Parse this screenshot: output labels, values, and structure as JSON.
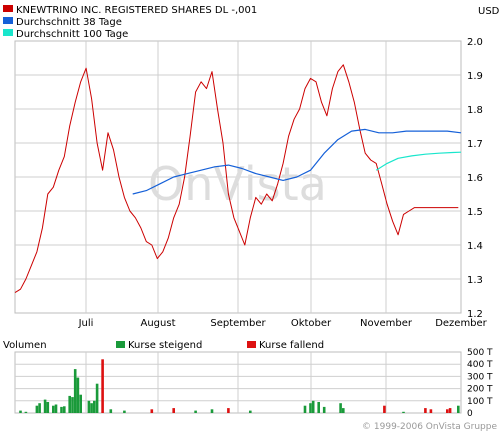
{
  "chart_data": [
    {
      "type": "line",
      "currency": "USD",
      "legend": [
        {
          "name": "KNEWTRINO INC. REGISTERED SHARES DL -,001",
          "color": "#cc0000"
        },
        {
          "name": "Durchschnitt 38 Tage",
          "color": "#1560d8"
        },
        {
          "name": "Durchschnitt 100 Tage",
          "color": "#19e6cc"
        }
      ],
      "x_labels": [
        "Juli",
        "August",
        "September",
        "Oktober",
        "November",
        "Dezember"
      ],
      "ylim": [
        1.2,
        2.0
      ],
      "y_ticks": [
        "1.2",
        "1.3",
        "1.4",
        "1.5",
        "1.6",
        "1.7",
        "1.8",
        "1.9",
        "2.0"
      ],
      "grid": true,
      "watermark": "OnVista",
      "x_range": [
        0,
        163
      ],
      "series": [
        {
          "name": "KNEWTRINO INC. REGISTERED SHARES DL -,001",
          "color": "#cc0000",
          "x": [
            0,
            2,
            4,
            6,
            8,
            10,
            12,
            14,
            16,
            18,
            20,
            22,
            24,
            26,
            28,
            30,
            32,
            34,
            36,
            38,
            40,
            42,
            44,
            46,
            48,
            50,
            52,
            54,
            56,
            58,
            60,
            62,
            64,
            66,
            68,
            70,
            72,
            74,
            76,
            78,
            80,
            82,
            84,
            86,
            88,
            90,
            92,
            94,
            96,
            98,
            100,
            102,
            104,
            106,
            108,
            110,
            112,
            114,
            116,
            118,
            120,
            122,
            124,
            126,
            128,
            130,
            132,
            134,
            136,
            138,
            140,
            142,
            144,
            146,
            148,
            150,
            152,
            154,
            156,
            158,
            160,
            162
          ],
          "y": [
            1.26,
            1.27,
            1.3,
            1.34,
            1.38,
            1.45,
            1.55,
            1.57,
            1.62,
            1.66,
            1.75,
            1.82,
            1.88,
            1.92,
            1.83,
            1.7,
            1.62,
            1.73,
            1.68,
            1.6,
            1.54,
            1.5,
            1.48,
            1.45,
            1.41,
            1.4,
            1.36,
            1.38,
            1.42,
            1.48,
            1.52,
            1.6,
            1.72,
            1.85,
            1.88,
            1.86,
            1.91,
            1.8,
            1.7,
            1.55,
            1.48,
            1.44,
            1.4,
            1.48,
            1.54,
            1.52,
            1.55,
            1.53,
            1.58,
            1.64,
            1.72,
            1.77,
            1.8,
            1.86,
            1.89,
            1.88,
            1.82,
            1.78,
            1.86,
            1.91,
            1.93,
            1.88,
            1.82,
            1.74,
            1.67,
            1.65,
            1.64,
            1.58,
            1.52,
            1.47,
            1.43,
            1.49,
            1.5,
            1.51,
            1.51,
            1.51,
            1.51,
            1.51,
            1.51,
            1.51,
            1.51,
            1.51
          ],
          "x_limit": 163
        },
        {
          "name": "Durchschnitt 38 Tage",
          "color": "#1560d8",
          "x": [
            43,
            48,
            53,
            58,
            63,
            68,
            73,
            78,
            83,
            88,
            93,
            98,
            103,
            108,
            113,
            118,
            123,
            128,
            133,
            138,
            143,
            148,
            153,
            158,
            163
          ],
          "y": [
            1.55,
            1.56,
            1.58,
            1.6,
            1.61,
            1.62,
            1.63,
            1.635,
            1.625,
            1.61,
            1.6,
            1.59,
            1.6,
            1.62,
            1.67,
            1.71,
            1.735,
            1.74,
            1.73,
            1.73,
            1.735,
            1.735,
            1.735,
            1.735,
            1.73
          ]
        },
        {
          "name": "Durchschnitt 100 Tage",
          "color": "#19e6cc",
          "x": [
            132,
            136,
            140,
            145,
            150,
            155,
            160,
            163
          ],
          "y": [
            1.62,
            1.64,
            1.655,
            1.662,
            1.667,
            1.67,
            1.672,
            1.673
          ]
        }
      ]
    },
    {
      "type": "bar",
      "title": "Volumen",
      "legend": [
        {
          "name": "Kurse steigend",
          "color": "#1a9a3a"
        },
        {
          "name": "Kurse fallend",
          "color": "#dd1111"
        }
      ],
      "ylim": [
        0,
        500
      ],
      "y_ticks": [
        "0",
        "100 T",
        "200 T",
        "300 T",
        "400 T",
        "500 T"
      ],
      "grid": true,
      "bars": [
        {
          "x": 2,
          "v": 20,
          "dir": "up"
        },
        {
          "x": 4,
          "v": 10,
          "dir": "up"
        },
        {
          "x": 8,
          "v": 60,
          "dir": "up"
        },
        {
          "x": 9,
          "v": 80,
          "dir": "up"
        },
        {
          "x": 11,
          "v": 110,
          "dir": "up"
        },
        {
          "x": 12,
          "v": 90,
          "dir": "up"
        },
        {
          "x": 14,
          "v": 60,
          "dir": "up"
        },
        {
          "x": 15,
          "v": 70,
          "dir": "up"
        },
        {
          "x": 17,
          "v": 50,
          "dir": "up"
        },
        {
          "x": 18,
          "v": 55,
          "dir": "up"
        },
        {
          "x": 20,
          "v": 140,
          "dir": "up"
        },
        {
          "x": 21,
          "v": 130,
          "dir": "up"
        },
        {
          "x": 22,
          "v": 360,
          "dir": "up"
        },
        {
          "x": 23,
          "v": 290,
          "dir": "up"
        },
        {
          "x": 24,
          "v": 150,
          "dir": "up"
        },
        {
          "x": 27,
          "v": 100,
          "dir": "up"
        },
        {
          "x": 28,
          "v": 80,
          "dir": "up"
        },
        {
          "x": 29,
          "v": 100,
          "dir": "up"
        },
        {
          "x": 30,
          "v": 240,
          "dir": "up"
        },
        {
          "x": 32,
          "v": 440,
          "dir": "down"
        },
        {
          "x": 35,
          "v": 30,
          "dir": "up"
        },
        {
          "x": 40,
          "v": 20,
          "dir": "up"
        },
        {
          "x": 50,
          "v": 30,
          "dir": "down"
        },
        {
          "x": 58,
          "v": 40,
          "dir": "down"
        },
        {
          "x": 66,
          "v": 20,
          "dir": "up"
        },
        {
          "x": 72,
          "v": 30,
          "dir": "up"
        },
        {
          "x": 78,
          "v": 40,
          "dir": "down"
        },
        {
          "x": 86,
          "v": 20,
          "dir": "up"
        },
        {
          "x": 106,
          "v": 60,
          "dir": "up"
        },
        {
          "x": 108,
          "v": 80,
          "dir": "up"
        },
        {
          "x": 109,
          "v": 100,
          "dir": "up"
        },
        {
          "x": 111,
          "v": 90,
          "dir": "up"
        },
        {
          "x": 113,
          "v": 50,
          "dir": "up"
        },
        {
          "x": 119,
          "v": 80,
          "dir": "up"
        },
        {
          "x": 120,
          "v": 40,
          "dir": "up"
        },
        {
          "x": 135,
          "v": 60,
          "dir": "down"
        },
        {
          "x": 142,
          "v": 10,
          "dir": "up"
        },
        {
          "x": 150,
          "v": 40,
          "dir": "down"
        },
        {
          "x": 152,
          "v": 30,
          "dir": "down"
        },
        {
          "x": 158,
          "v": 30,
          "dir": "down"
        },
        {
          "x": 159,
          "v": 40,
          "dir": "down"
        },
        {
          "x": 162,
          "v": 60,
          "dir": "up"
        }
      ]
    }
  ],
  "footer": {
    "copyright": "© 1999-2006 OnVista Gruppe"
  }
}
